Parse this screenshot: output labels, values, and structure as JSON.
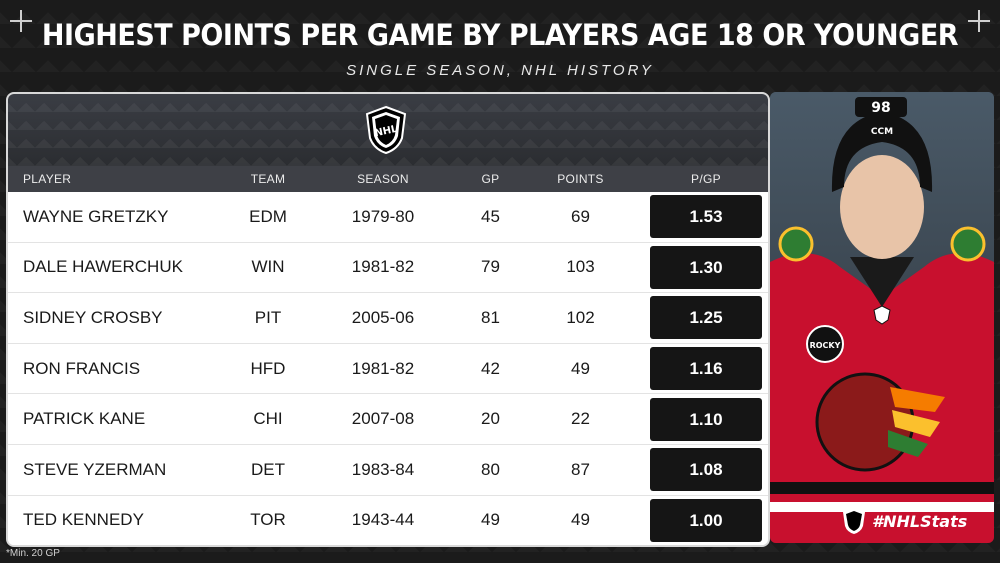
{
  "title": "HIGHEST POINTS PER GAME BY PLAYERS AGE 18 OR YOUNGER",
  "subtitle": "SINGLE SEASON, NHL HISTORY",
  "colors": {
    "background": "#1b1b1b",
    "row_bg": "#ffffff",
    "ppg_cell_bg": "#151515",
    "jersey_red": "#c8102e"
  },
  "table": {
    "headers": {
      "player": "PLAYER",
      "team": "TEAM",
      "season": "SEASON",
      "gp": "GP",
      "points": "POINTS",
      "ppg": "P/GP"
    },
    "rows": [
      {
        "player": "WAYNE GRETZKY",
        "team": "EDM",
        "season": "1979-80",
        "gp": "45",
        "points": "69",
        "ppg": "1.53"
      },
      {
        "player": "DALE HAWERCHUK",
        "team": "WIN",
        "season": "1981-82",
        "gp": "79",
        "points": "103",
        "ppg": "1.30"
      },
      {
        "player": "SIDNEY CROSBY",
        "team": "PIT",
        "season": "2005-06",
        "gp": "81",
        "points": "102",
        "ppg": "1.25"
      },
      {
        "player": "RON FRANCIS",
        "team": "HFD",
        "season": "1981-82",
        "gp": "42",
        "points": "49",
        "ppg": "1.16"
      },
      {
        "player": "PATRICK KANE",
        "team": "CHI",
        "season": "2007-08",
        "gp": "20",
        "points": "22",
        "ppg": "1.10"
      },
      {
        "player": "STEVE YZERMAN",
        "team": "DET",
        "season": "1983-84",
        "gp": "80",
        "points": "87",
        "ppg": "1.08"
      },
      {
        "player": "TED KENNEDY",
        "team": "TOR",
        "season": "1943-44",
        "gp": "49",
        "points": "49",
        "ppg": "1.00"
      }
    ]
  },
  "logo_text": "NHL",
  "photo": {
    "helmet_number": "98",
    "helmet_brand": "CCM",
    "patch_text": "ROCKY"
  },
  "hashtag": "#NHLStats",
  "footnote": "*Min. 20 GP",
  "icons": [
    "nhl-shield-icon",
    "crosshair-icon"
  ]
}
